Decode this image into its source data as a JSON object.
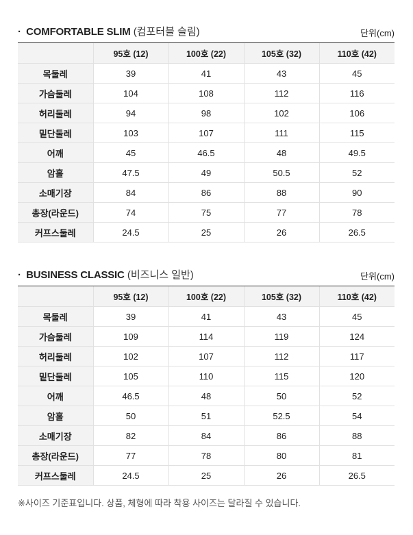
{
  "sections": [
    {
      "bullet": "·",
      "title_en": "COMFORTABLE SLIM",
      "title_ko": "(컴포터블 슬림)",
      "unit": "단위(cm)",
      "columns": [
        "",
        "95호 (12)",
        "100호 (22)",
        "105호 (32)",
        "110호 (42)"
      ],
      "rows": [
        {
          "label": "목둘레",
          "values": [
            "39",
            "41",
            "43",
            "45"
          ]
        },
        {
          "label": "가슴둘레",
          "values": [
            "104",
            "108",
            "112",
            "116"
          ]
        },
        {
          "label": "허리둘레",
          "values": [
            "94",
            "98",
            "102",
            "106"
          ]
        },
        {
          "label": "밑단둘레",
          "values": [
            "103",
            "107",
            "111",
            "115"
          ]
        },
        {
          "label": "어깨",
          "values": [
            "45",
            "46.5",
            "48",
            "49.5"
          ]
        },
        {
          "label": "암홀",
          "values": [
            "47.5",
            "49",
            "50.5",
            "52"
          ]
        },
        {
          "label": "소매기장",
          "values": [
            "84",
            "86",
            "88",
            "90"
          ]
        },
        {
          "label": "총장(라운드)",
          "values": [
            "74",
            "75",
            "77",
            "78"
          ]
        },
        {
          "label": "커프스둘레",
          "values": [
            "24.5",
            "25",
            "26",
            "26.5"
          ]
        }
      ]
    },
    {
      "bullet": "·",
      "title_en": "BUSINESS CLASSIC",
      "title_ko": "(비즈니스 일반)",
      "unit": "단위(cm)",
      "columns": [
        "",
        "95호 (12)",
        "100호 (22)",
        "105호 (32)",
        "110호 (42)"
      ],
      "rows": [
        {
          "label": "목둘레",
          "values": [
            "39",
            "41",
            "43",
            "45"
          ]
        },
        {
          "label": "가슴둘레",
          "values": [
            "109",
            "114",
            "119",
            "124"
          ]
        },
        {
          "label": "허리둘레",
          "values": [
            "102",
            "107",
            "112",
            "117"
          ]
        },
        {
          "label": "밑단둘레",
          "values": [
            "105",
            "110",
            "115",
            "120"
          ]
        },
        {
          "label": "어깨",
          "values": [
            "46.5",
            "48",
            "50",
            "52"
          ]
        },
        {
          "label": "암홀",
          "values": [
            "50",
            "51",
            "52.5",
            "54"
          ]
        },
        {
          "label": "소매기장",
          "values": [
            "82",
            "84",
            "86",
            "88"
          ]
        },
        {
          "label": "총장(라운드)",
          "values": [
            "77",
            "78",
            "80",
            "81"
          ]
        },
        {
          "label": "커프스둘레",
          "values": [
            "24.5",
            "25",
            "26",
            "26.5"
          ]
        }
      ]
    }
  ],
  "note": "※사이즈 기준표입니다. 상품, 체형에 따라 착용 사이즈는 달라질 수 있습니다."
}
